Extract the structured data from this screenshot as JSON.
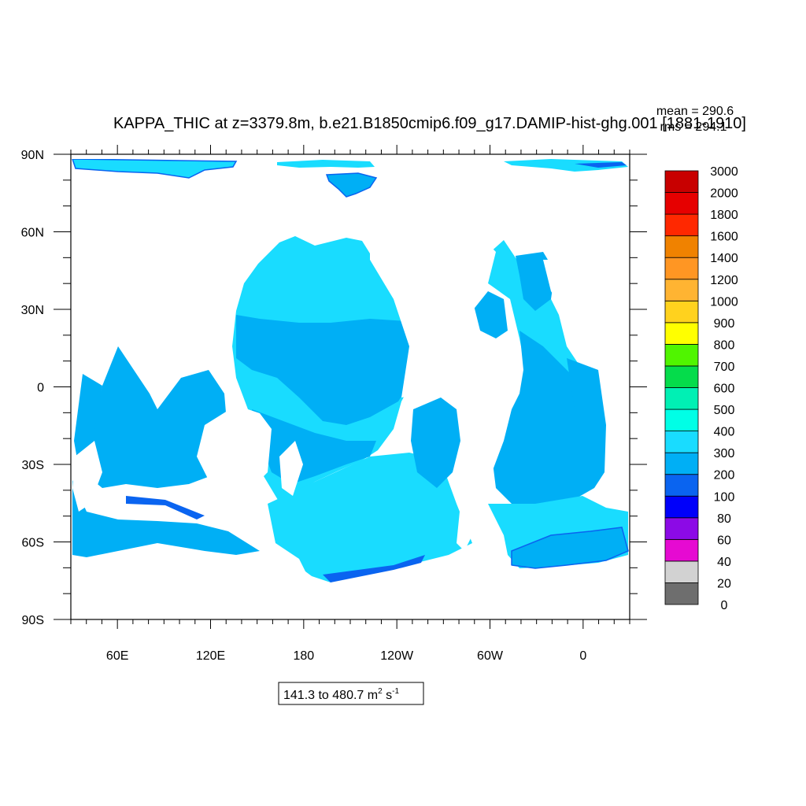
{
  "title": "KAPPA_THIC at z=3379.8m, b.e21.B1850cmip6.f09_g17.DAMIP-hist-ghg.001 [1881-1910]",
  "stats": {
    "mean": "mean = 290.6",
    "rms": "rms = 294.1"
  },
  "range_label": {
    "prefix": "141.3 to 480.7 m",
    "sup1": "2",
    "mid": " s",
    "sup2": "-1"
  },
  "colors": {
    "land": "#ffffff",
    "band_100_200": "#0a64f0",
    "band_200_300": "#00aff5",
    "band_300_400": "#19dcff"
  },
  "chart_data": {
    "type": "heatmap",
    "title": "KAPPA_THIC at z=3379.8m, b.e21.B1850cmip6.f09_g17.DAMIP-hist-ghg.001 [1881-1910]",
    "projection": "cylindrical equidistant, longitude 30E to 30E",
    "lon_range": [
      30,
      390
    ],
    "lat_range": [
      -90,
      90
    ],
    "x_ticks": [
      {
        "lon": 60,
        "label": "60E"
      },
      {
        "lon": 120,
        "label": "120E"
      },
      {
        "lon": 180,
        "label": "180"
      },
      {
        "lon": 240,
        "label": "120W"
      },
      {
        "lon": 300,
        "label": "60W"
      },
      {
        "lon": 360,
        "label": "0"
      }
    ],
    "y_ticks": [
      {
        "lat": 90,
        "label": "90N"
      },
      {
        "lat": 60,
        "label": "60N"
      },
      {
        "lat": 30,
        "label": "30N"
      },
      {
        "lat": 0,
        "label": "0"
      },
      {
        "lat": -30,
        "label": "30S"
      },
      {
        "lat": -60,
        "label": "60S"
      },
      {
        "lat": -90,
        "label": "90S"
      }
    ],
    "colorbar": {
      "levels": [
        "0",
        "20",
        "40",
        "60",
        "80",
        "100",
        "200",
        "300",
        "400",
        "500",
        "600",
        "700",
        "800",
        "900",
        "1000",
        "1200",
        "1400",
        "1600",
        "1800",
        "2000",
        "3000"
      ],
      "colors": [
        "#6e6e6e",
        "#d2d2d2",
        "#e60ad2",
        "#8c0ae6",
        "#0000fa",
        "#0a64f0",
        "#00aff5",
        "#19dcff",
        "#00ffe6",
        "#00f0b4",
        "#05dc4b",
        "#50f500",
        "#ffff00",
        "#ffd21e",
        "#ffb432",
        "#ff9623",
        "#f08200",
        "#ff2800",
        "#e60000",
        "#c80000"
      ]
    },
    "mean": 290.6,
    "rms": 294.1,
    "min": 141.3,
    "max": 480.7,
    "units": "m2 s-1"
  }
}
